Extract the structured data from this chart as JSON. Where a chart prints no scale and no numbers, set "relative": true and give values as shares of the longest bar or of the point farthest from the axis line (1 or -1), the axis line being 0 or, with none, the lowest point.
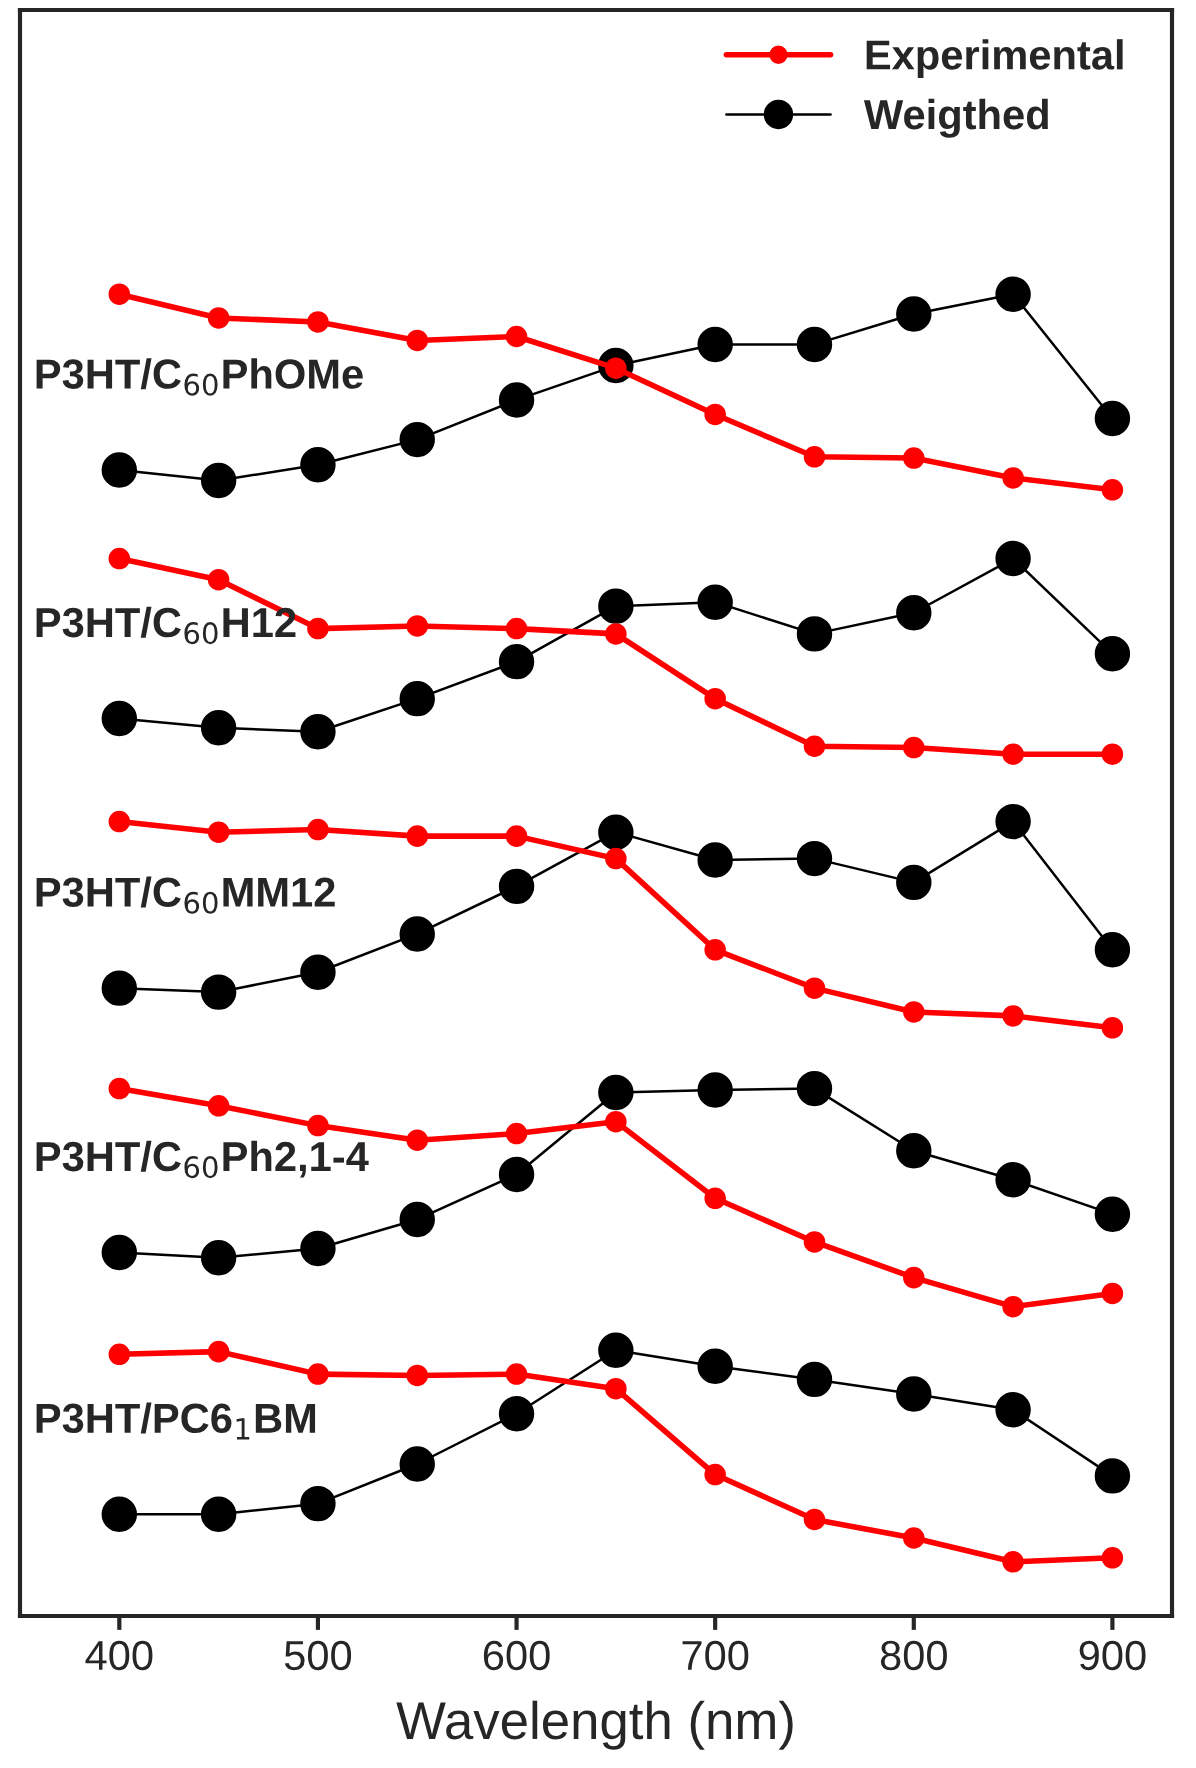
{
  "chart_data": {
    "type": "line",
    "xlabel": "Wavelength (nm)",
    "relative": true,
    "tick_labels": "x",
    "legend": "top right",
    "marker": "circle",
    "grid": false,
    "x": [
      400,
      450,
      500,
      550,
      600,
      650,
      700,
      750,
      800,
      850,
      900
    ],
    "xlim": [
      350,
      930
    ],
    "xticks": [
      400,
      500,
      600,
      700,
      800,
      900
    ],
    "series": [
      {
        "name": "Experimental",
        "color": "#ff0000",
        "values": [
          1.0,
          0.982,
          0.979,
          0.965,
          0.968,
          0.944,
          0.909,
          0.877,
          0.876,
          0.861,
          0.852
        ]
      },
      {
        "name": "Weigthed",
        "color": "#000000",
        "values": [
          0.867,
          0.859,
          0.871,
          0.89,
          0.92,
          0.946,
          0.962,
          0.962,
          0.985,
          1.0,
          0.906
        ]
      },
      {
        "color": "#ff0000",
        "values": [
          0.8,
          0.784,
          0.747,
          0.749,
          0.747,
          0.743,
          0.694,
          0.658,
          0.657,
          0.652,
          0.652
        ]
      },
      {
        "color": "#000000",
        "values": [
          0.679,
          0.672,
          0.669,
          0.694,
          0.722,
          0.764,
          0.767,
          0.743,
          0.759,
          0.8,
          0.728
        ]
      },
      {
        "color": "#ff0000",
        "values": [
          0.601,
          0.593,
          0.595,
          0.59,
          0.59,
          0.573,
          0.504,
          0.475,
          0.457,
          0.454,
          0.445
        ]
      },
      {
        "color": "#000000",
        "values": [
          0.475,
          0.472,
          0.487,
          0.516,
          0.552,
          0.593,
          0.572,
          0.573,
          0.555,
          0.601,
          0.504
        ]
      },
      {
        "color": "#ff0000",
        "values": [
          0.399,
          0.386,
          0.371,
          0.36,
          0.365,
          0.374,
          0.316,
          0.283,
          0.256,
          0.234,
          0.244
        ]
      },
      {
        "color": "#000000",
        "values": [
          0.275,
          0.271,
          0.278,
          0.3,
          0.334,
          0.396,
          0.398,
          0.399,
          0.352,
          0.33,
          0.304
        ]
      },
      {
        "color": "#ff0000",
        "values": [
          0.198,
          0.2,
          0.183,
          0.182,
          0.183,
          0.172,
          0.107,
          0.073,
          0.059,
          0.041,
          0.044
        ]
      },
      {
        "color": "#000000",
        "values": [
          0.077,
          0.077,
          0.085,
          0.115,
          0.153,
          0.201,
          0.189,
          0.179,
          0.168,
          0.156,
          0.106
        ]
      }
    ],
    "annotations": [
      "P3HT/C$_{60}$PhOMe",
      "P3HT/C$_{60}$H12",
      "P3HT/C$_{60}$MM12",
      "P3HT/C$_{60}$Ph2,1-4",
      "P3HT/PC6$_{1}$BM"
    ]
  }
}
